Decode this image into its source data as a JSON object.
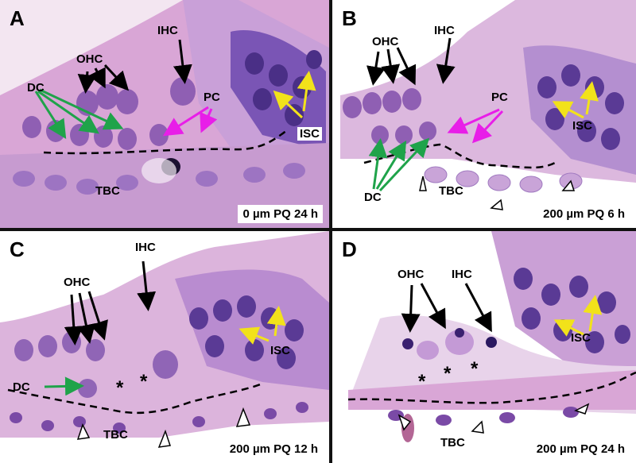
{
  "panels": [
    {
      "letter": "A",
      "condition": "0 µm PQ 24 h",
      "labels": {
        "ihc": "IHC",
        "ohc": "OHC",
        "dc": "DC",
        "pc": "PC",
        "isc": "ISC",
        "tbc": "TBC"
      }
    },
    {
      "letter": "B",
      "condition": "200 µm PQ 6 h",
      "labels": {
        "ihc": "IHC",
        "ohc": "OHC",
        "dc": "DC",
        "pc": "PC",
        "isc": "ISC",
        "tbc": "TBC"
      }
    },
    {
      "letter": "C",
      "condition": "200 µm PQ 12 h",
      "labels": {
        "ihc": "IHC",
        "ohc": "OHC",
        "dc": "DC",
        "isc": "ISC",
        "tbc": "TBC",
        "asterisk": "*"
      }
    },
    {
      "letter": "D",
      "condition": "200 µm PQ 24 h",
      "labels": {
        "ihc": "IHC",
        "ohc": "OHC",
        "isc": "ISC",
        "tbc": "TBC",
        "asterisk": "*"
      }
    }
  ],
  "colors": {
    "background": "#ffffff",
    "divider": "#111111",
    "tissue_pink": "#d9a6d6",
    "tissue_purple": "#9a63b8",
    "nucleus_dark": "#4a2f86",
    "arrow_black": "#000000",
    "arrow_green": "#1fa34a",
    "arrow_magenta": "#e81ee8",
    "arrow_yellow": "#f2e21a"
  }
}
